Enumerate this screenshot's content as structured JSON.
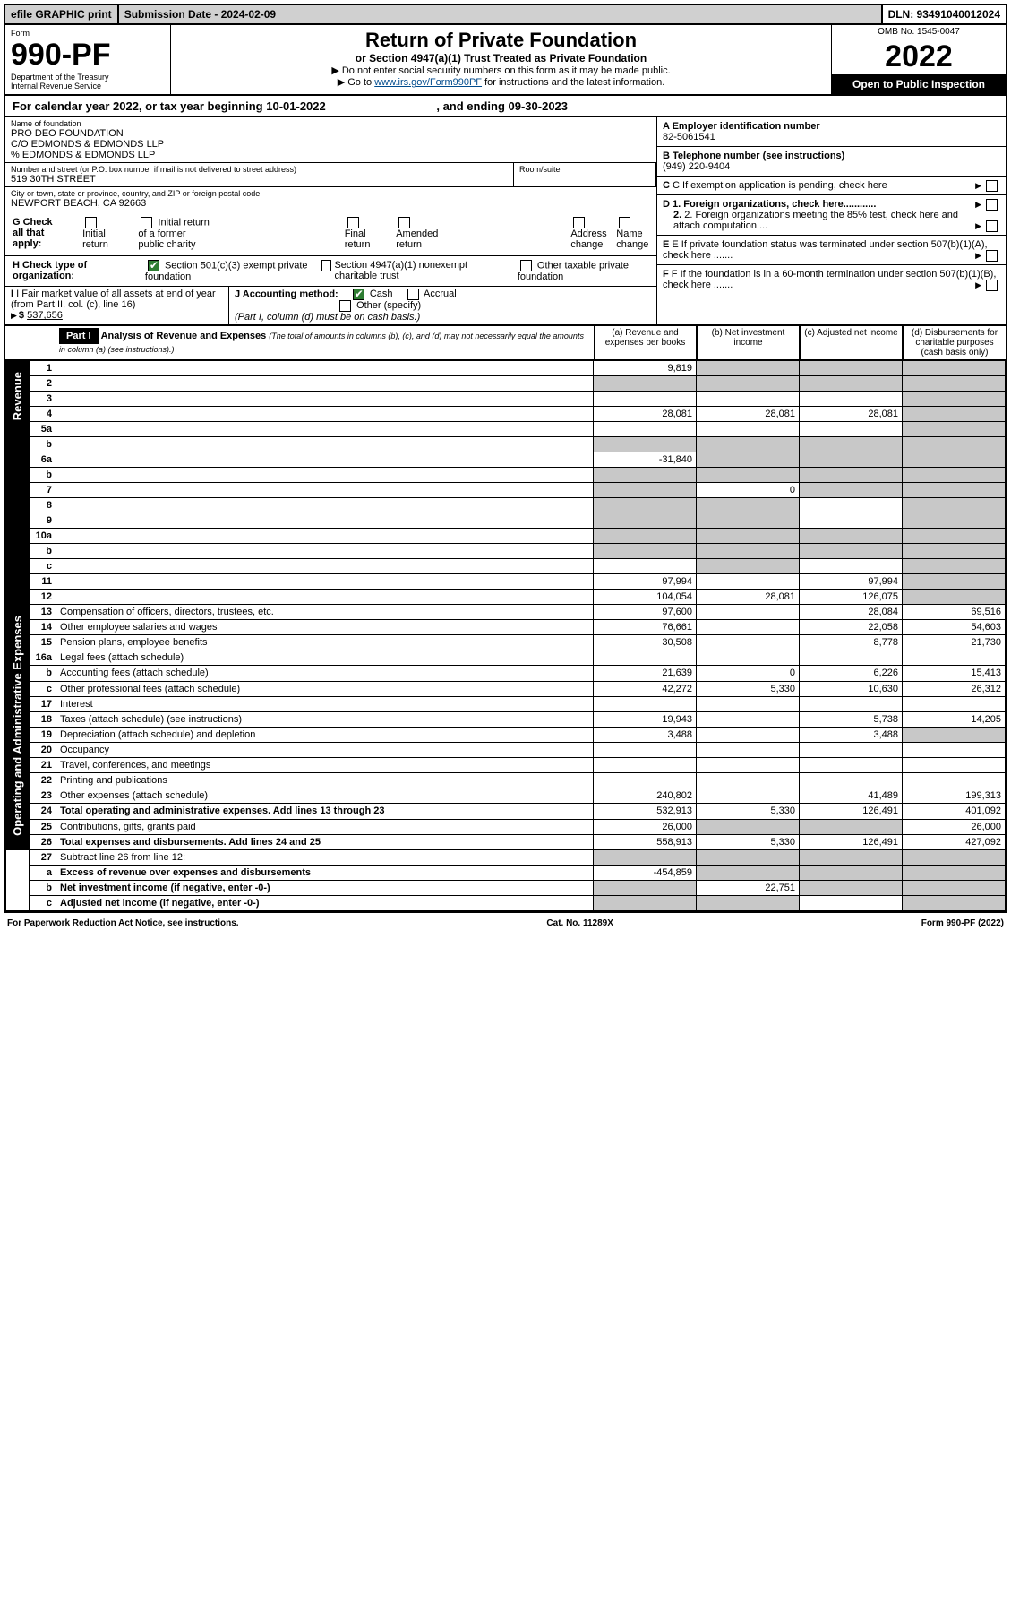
{
  "topbar": {
    "efile": "efile GRAPHIC print",
    "submission": "Submission Date - 2024-02-09",
    "dln": "DLN: 93491040012024"
  },
  "header": {
    "form_word": "Form",
    "form_no": "990-PF",
    "dept": "Department of the Treasury",
    "irs": "Internal Revenue Service",
    "title": "Return of Private Foundation",
    "subtitle": "or Section 4947(a)(1) Trust Treated as Private Foundation",
    "instr1": "▶ Do not enter social security numbers on this form as it may be made public.",
    "instr2_pre": "▶ Go to ",
    "instr2_link": "www.irs.gov/Form990PF",
    "instr2_post": " for instructions and the latest information.",
    "omb": "OMB No. 1545-0047",
    "year": "2022",
    "open": "Open to Public Inspection"
  },
  "calyear": {
    "text_pre": "For calendar year 2022, or tax year beginning ",
    "begin": "10-01-2022",
    "text_mid": " , and ending ",
    "end": "09-30-2023"
  },
  "entity": {
    "name_lbl": "Name of foundation",
    "name1": "PRO DEO FOUNDATION",
    "name2": "C/O EDMONDS & EDMONDS LLP",
    "name3": "% EDMONDS & EDMONDS LLP",
    "street_lbl": "Number and street (or P.O. box number if mail is not delivered to street address)",
    "street": "519 30TH STREET",
    "room_lbl": "Room/suite",
    "city_lbl": "City or town, state or province, country, and ZIP or foreign postal code",
    "city": "NEWPORT BEACH, CA  92663",
    "a_lbl": "A Employer identification number",
    "a_val": "82-5061541",
    "b_lbl": "B Telephone number (see instructions)",
    "b_val": "(949) 220-9404",
    "c_lbl": "C If exemption application is pending, check here",
    "d1": "D 1. Foreign organizations, check here............",
    "d2": "2. Foreign organizations meeting the 85% test, check here and attach computation ...",
    "e": "E  If private foundation status was terminated under section 507(b)(1)(A), check here .......",
    "f": "F  If the foundation is in a 60-month termination under section 507(b)(1)(B), check here .......",
    "g_lbl": "G Check all that apply:",
    "g_opts": [
      "Initial return",
      "Initial return of a former public charity",
      "Final return",
      "Amended return",
      "Address change",
      "Name change"
    ],
    "h_lbl": "H Check type of organization:",
    "h1": "Section 501(c)(3) exempt private foundation",
    "h2": "Section 4947(a)(1) nonexempt charitable trust",
    "h3": "Other taxable private foundation",
    "i_lbl": "I Fair market value of all assets at end of year (from Part II, col. (c), line 16)",
    "i_val": "537,656",
    "j_lbl": "J Accounting method:",
    "j_cash": "Cash",
    "j_accr": "Accrual",
    "j_other": "Other (specify)",
    "j_note": "(Part I, column (d) must be on cash basis.)"
  },
  "part1": {
    "badge": "Part I",
    "title": "Analysis of Revenue and Expenses",
    "title_note": "(The total of amounts in columns (b), (c), and (d) may not necessarily equal the amounts in column (a) (see instructions).)",
    "colA": "(a) Revenue and expenses per books",
    "colB": "(b) Net investment income",
    "colC": "(c) Adjusted net income",
    "colD": "(d) Disbursements for charitable purposes (cash basis only)",
    "side_rev": "Revenue",
    "side_exp": "Operating and Administrative Expenses",
    "rows": [
      {
        "n": "1",
        "d": "",
        "a": "9,819",
        "b": "",
        "c": "",
        "bg": false,
        "bgB": true,
        "bgC": true,
        "bgD": true
      },
      {
        "n": "2",
        "d": "",
        "a": "",
        "b": "",
        "c": "",
        "bgA": true,
        "bgB": true,
        "bgC": true,
        "bgD": true
      },
      {
        "n": "3",
        "d": "",
        "a": "",
        "b": "",
        "c": "",
        "bgD": true
      },
      {
        "n": "4",
        "d": "",
        "a": "28,081",
        "b": "28,081",
        "c": "28,081",
        "bgD": true
      },
      {
        "n": "5a",
        "d": "",
        "a": "",
        "b": "",
        "c": "",
        "bgD": true
      },
      {
        "n": "b",
        "d": "",
        "a": "",
        "b": "",
        "c": "",
        "bgA": true,
        "bgB": true,
        "bgC": true,
        "bgD": true
      },
      {
        "n": "6a",
        "d": "",
        "a": "-31,840",
        "b": "",
        "c": "",
        "bgB": true,
        "bgC": true,
        "bgD": true
      },
      {
        "n": "b",
        "d": "",
        "a": "",
        "b": "",
        "c": "",
        "bgA": true,
        "bgB": true,
        "bgC": true,
        "bgD": true
      },
      {
        "n": "7",
        "d": "",
        "a": "",
        "b": "0",
        "c": "",
        "bgA": true,
        "bgC": true,
        "bgD": true
      },
      {
        "n": "8",
        "d": "",
        "a": "",
        "b": "",
        "c": "",
        "bgA": true,
        "bgB": true,
        "bgD": true
      },
      {
        "n": "9",
        "d": "",
        "a": "",
        "b": "",
        "c": "",
        "bgA": true,
        "bgB": true,
        "bgD": true
      },
      {
        "n": "10a",
        "d": "",
        "a": "",
        "b": "",
        "c": "",
        "bgA": true,
        "bgB": true,
        "bgC": true,
        "bgD": true
      },
      {
        "n": "b",
        "d": "",
        "a": "",
        "b": "",
        "c": "",
        "bgA": true,
        "bgB": true,
        "bgC": true,
        "bgD": true
      },
      {
        "n": "c",
        "d": "",
        "a": "",
        "b": "",
        "c": "",
        "bgB": true,
        "bgD": true
      },
      {
        "n": "11",
        "d": "",
        "a": "97,994",
        "b": "",
        "c": "97,994",
        "bgD": true
      },
      {
        "n": "12",
        "d": "",
        "a": "104,054",
        "b": "28,081",
        "c": "126,075",
        "bold": true,
        "bgD": true
      }
    ],
    "exp_rows": [
      {
        "n": "13",
        "d": "Compensation of officers, directors, trustees, etc.",
        "a": "97,600",
        "b": "",
        "c": "28,084",
        "dd": "69,516"
      },
      {
        "n": "14",
        "d": "Other employee salaries and wages",
        "a": "76,661",
        "b": "",
        "c": "22,058",
        "dd": "54,603"
      },
      {
        "n": "15",
        "d": "Pension plans, employee benefits",
        "a": "30,508",
        "b": "",
        "c": "8,778",
        "dd": "21,730"
      },
      {
        "n": "16a",
        "d": "Legal fees (attach schedule)",
        "a": "",
        "b": "",
        "c": "",
        "dd": ""
      },
      {
        "n": "b",
        "d": "Accounting fees (attach schedule)",
        "a": "21,639",
        "b": "0",
        "c": "6,226",
        "dd": "15,413"
      },
      {
        "n": "c",
        "d": "Other professional fees (attach schedule)",
        "a": "42,272",
        "b": "5,330",
        "c": "10,630",
        "dd": "26,312"
      },
      {
        "n": "17",
        "d": "Interest",
        "a": "",
        "b": "",
        "c": "",
        "dd": ""
      },
      {
        "n": "18",
        "d": "Taxes (attach schedule) (see instructions)",
        "a": "19,943",
        "b": "",
        "c": "5,738",
        "dd": "14,205"
      },
      {
        "n": "19",
        "d": "Depreciation (attach schedule) and depletion",
        "a": "3,488",
        "b": "",
        "c": "3,488",
        "dd": "",
        "bgD": true
      },
      {
        "n": "20",
        "d": "Occupancy",
        "a": "",
        "b": "",
        "c": "",
        "dd": ""
      },
      {
        "n": "21",
        "d": "Travel, conferences, and meetings",
        "a": "",
        "b": "",
        "c": "",
        "dd": ""
      },
      {
        "n": "22",
        "d": "Printing and publications",
        "a": "",
        "b": "",
        "c": "",
        "dd": ""
      },
      {
        "n": "23",
        "d": "Other expenses (attach schedule)",
        "a": "240,802",
        "b": "",
        "c": "41,489",
        "dd": "199,313"
      },
      {
        "n": "24",
        "d": "Total operating and administrative expenses. Add lines 13 through 23",
        "a": "532,913",
        "b": "5,330",
        "c": "126,491",
        "dd": "401,092",
        "bold": true
      },
      {
        "n": "25",
        "d": "Contributions, gifts, grants paid",
        "a": "26,000",
        "b": "",
        "c": "",
        "dd": "26,000",
        "bgB": true,
        "bgC": true
      },
      {
        "n": "26",
        "d": "Total expenses and disbursements. Add lines 24 and 25",
        "a": "558,913",
        "b": "5,330",
        "c": "126,491",
        "dd": "427,092",
        "bold": true
      }
    ],
    "final_rows": [
      {
        "n": "27",
        "d": "Subtract line 26 from line 12:",
        "a": "",
        "b": "",
        "c": "",
        "dd": "",
        "bgA": true,
        "bgB": true,
        "bgC": true,
        "bgD": true
      },
      {
        "n": "a",
        "d": "Excess of revenue over expenses and disbursements",
        "a": "-454,859",
        "b": "",
        "c": "",
        "dd": "",
        "bold": true,
        "bgB": true,
        "bgC": true,
        "bgD": true
      },
      {
        "n": "b",
        "d": "Net investment income (if negative, enter -0-)",
        "a": "",
        "b": "22,751",
        "c": "",
        "dd": "",
        "bold": true,
        "bgA": true,
        "bgC": true,
        "bgD": true
      },
      {
        "n": "c",
        "d": "Adjusted net income (if negative, enter -0-)",
        "a": "",
        "b": "",
        "c": "",
        "dd": "",
        "bold": true,
        "bgA": true,
        "bgB": true,
        "bgD": true
      }
    ]
  },
  "footer": {
    "left": "For Paperwork Reduction Act Notice, see instructions.",
    "mid": "Cat. No. 11289X",
    "right": "Form 990-PF (2022)"
  }
}
